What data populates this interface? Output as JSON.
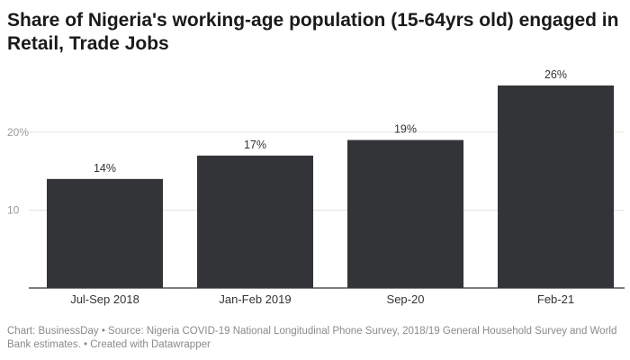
{
  "chart_data": {
    "type": "bar",
    "title": "Share of Nigeria's working-age population (15-64yrs old) engaged in Retail, Trade Jobs",
    "categories": [
      "Jul-Sep 2018",
      "Jan-Feb 2019",
      "Sep-20",
      "Feb-21"
    ],
    "values": [
      14,
      17,
      19,
      26
    ],
    "data_labels": [
      "14%",
      "17%",
      "19%",
      "26%"
    ],
    "xlabel": "",
    "ylabel": "",
    "ylim": [
      0,
      26
    ],
    "yticks": [
      {
        "value": 10,
        "label": "10"
      },
      {
        "value": 20,
        "label": "20%"
      }
    ],
    "grid": true,
    "bar_color": "#333438",
    "source": "Chart: BusinessDay • Source: Nigeria COVID-19 National Longitudinal Phone Survey, 2018/19 General Household Survey and World Bank estimates. • Created with Datawrapper"
  }
}
